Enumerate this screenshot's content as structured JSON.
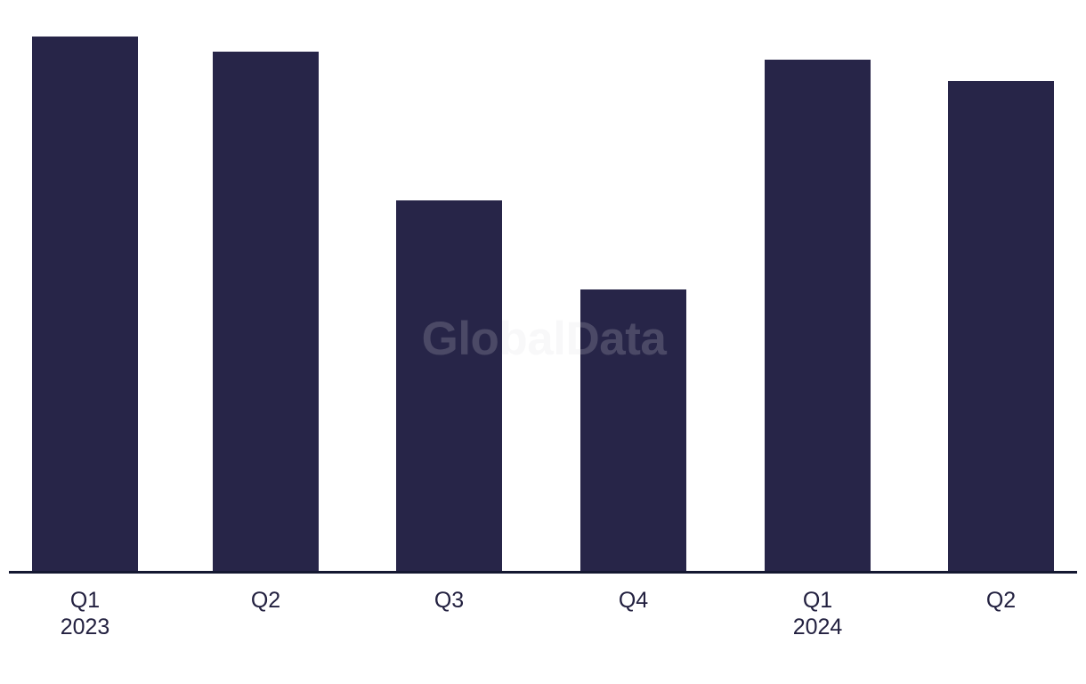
{
  "chart_data": {
    "type": "bar",
    "title": "",
    "watermark": "GlobalData",
    "categories": [
      "Q1 2023",
      "Q2 2023",
      "Q3 2023",
      "Q4 2023",
      "Q1 2024",
      "Q2 2024"
    ],
    "tick_labels": [
      {
        "quarter": "Q1",
        "year": "2023"
      },
      {
        "quarter": "Q2",
        "year": ""
      },
      {
        "quarter": "Q3",
        "year": ""
      },
      {
        "quarter": "Q4",
        "year": ""
      },
      {
        "quarter": "Q1",
        "year": "2024"
      },
      {
        "quarter": "Q2",
        "year": ""
      }
    ],
    "values_pct_of_tallest": [
      100,
      97.2,
      69.3,
      52.7,
      95.7,
      91.7
    ],
    "value_axis_shown": false,
    "ylim": [
      0,
      100
    ],
    "grid": "off",
    "legend": "none",
    "bar_color": "#272548",
    "axis_line_color": "#141831",
    "tick_label_color": "#232140",
    "watermark_color": "rgba(219,219,227,0.20)",
    "background_color": "#ffffff"
  }
}
